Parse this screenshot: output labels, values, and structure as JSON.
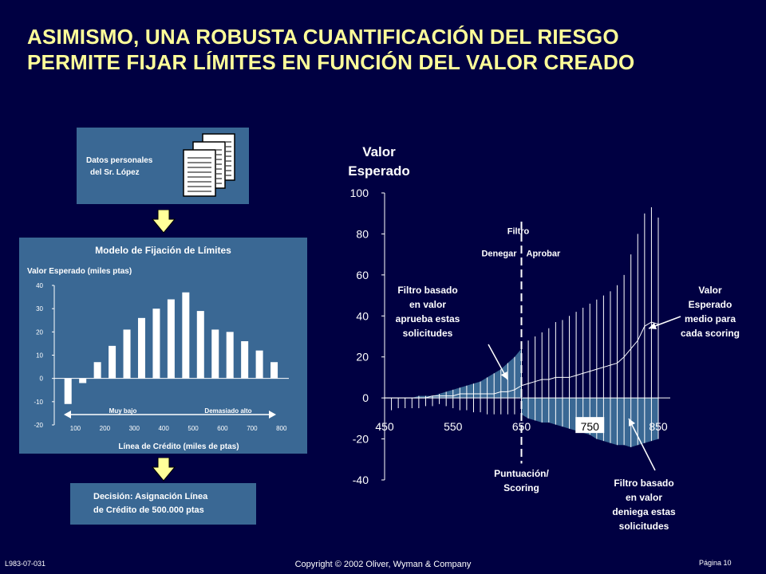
{
  "title": {
    "line1": "ASIMISMO, UNA ROBUSTA CUANTIFICACIÓN DEL RIESGO",
    "line2": "PERMITE FIJAR LÍMITES EN FUNCIÓN DEL VALOR CREADO"
  },
  "left": {
    "data_box": {
      "line1": "Datos personales",
      "line2": "del Sr. López"
    },
    "model": {
      "title": "Modelo de Fijación de Límites",
      "ylabel": "Valor Esperado (miles ptas)",
      "xlabel": "Línea de Crédito (miles de ptas)",
      "low_label": "Muy bajo",
      "high_label": "Demasiado alto"
    },
    "decision": {
      "line1": "Decisión: Asignación Línea",
      "line2": "de Crédito de 500.000 ptas"
    }
  },
  "chart_data": [
    {
      "type": "bar",
      "ylabel": "Valor Esperado (miles ptas)",
      "xlabel": "Línea de Crédito (miles de ptas)",
      "x_ticks": [
        "100",
        "200",
        "300",
        "400",
        "500",
        "600",
        "700",
        "800"
      ],
      "y_ticks": [
        "40",
        "30",
        "20",
        "10",
        "0",
        "-10",
        "-20"
      ],
      "ylim": [
        -20,
        40
      ],
      "xlim": [
        50,
        825
      ],
      "x": [
        75,
        125,
        175,
        225,
        275,
        325,
        375,
        425,
        475,
        525,
        575,
        625,
        675,
        725,
        775
      ],
      "values": [
        -11,
        -2,
        7,
        14,
        21,
        26,
        30,
        34,
        37,
        29,
        21,
        20,
        16,
        12,
        7
      ]
    },
    {
      "type": "area",
      "ylabel": "Valor Esperado",
      "x_ticks": [
        "450",
        "550",
        "650",
        "750",
        "850"
      ],
      "y_ticks": [
        "100",
        "80",
        "60",
        "40",
        "20",
        "0",
        "-20",
        "-40"
      ],
      "ylim": [
        -40,
        100
      ],
      "xlim": [
        450,
        850
      ],
      "filter_x": 650,
      "filter_label": "Filtro",
      "left_label": "Denegar",
      "right_label": "Aprobar",
      "xaxis_note": "Puntuación/ Scoring",
      "approve_note": [
        "Filtro basado",
        "en valor",
        "aprueba estas",
        "solicitudes"
      ],
      "deny_note": [
        "Filtro basado",
        "en valor",
        "deniega estas",
        "solicitudes"
      ],
      "mean_note": [
        "Valor",
        "Esperado",
        "medio para",
        "cada scoring"
      ],
      "x": [
        450,
        460,
        470,
        480,
        490,
        500,
        510,
        520,
        530,
        540,
        550,
        560,
        570,
        580,
        590,
        600,
        610,
        620,
        630,
        640,
        650,
        660,
        670,
        680,
        690,
        700,
        710,
        720,
        730,
        740,
        750,
        760,
        770,
        780,
        790,
        800,
        810,
        820,
        830,
        840,
        850
      ],
      "upper": [
        0,
        0,
        0,
        0,
        0,
        1,
        1,
        1,
        2,
        3,
        4,
        5,
        6,
        7,
        8,
        10,
        12,
        14,
        17,
        20,
        24,
        28,
        30,
        32,
        34,
        37,
        38,
        40,
        42,
        44,
        46,
        48,
        50,
        52,
        55,
        60,
        70,
        80,
        90,
        93,
        88
      ],
      "lower": [
        0,
        -6,
        -5,
        -5,
        -5,
        -5,
        -4,
        -4,
        -3,
        -4,
        -5,
        -6,
        -6,
        -7,
        -7,
        -8,
        -8,
        -8,
        -8,
        -8,
        -8,
        -10,
        -11,
        -12,
        -12,
        -13,
        -14,
        -15,
        -16,
        -17,
        -18,
        -20,
        -21,
        -22,
        -23,
        -23,
        -24,
        -23,
        -22,
        -21,
        -20
      ],
      "mean": [
        0,
        0,
        0,
        0,
        0,
        0,
        0,
        1,
        1,
        1,
        1,
        2,
        2,
        2,
        2,
        2,
        2,
        3,
        3,
        4,
        6,
        7,
        8,
        9,
        9,
        10,
        10,
        10,
        11,
        12,
        13,
        14,
        15,
        16,
        17,
        20,
        24,
        28,
        35,
        37,
        36
      ]
    }
  ],
  "footer": {
    "code": "L983-07-031",
    "copyright": "Copyright © 2002 Oliver, Wyman & Company",
    "page": "Página 10"
  }
}
